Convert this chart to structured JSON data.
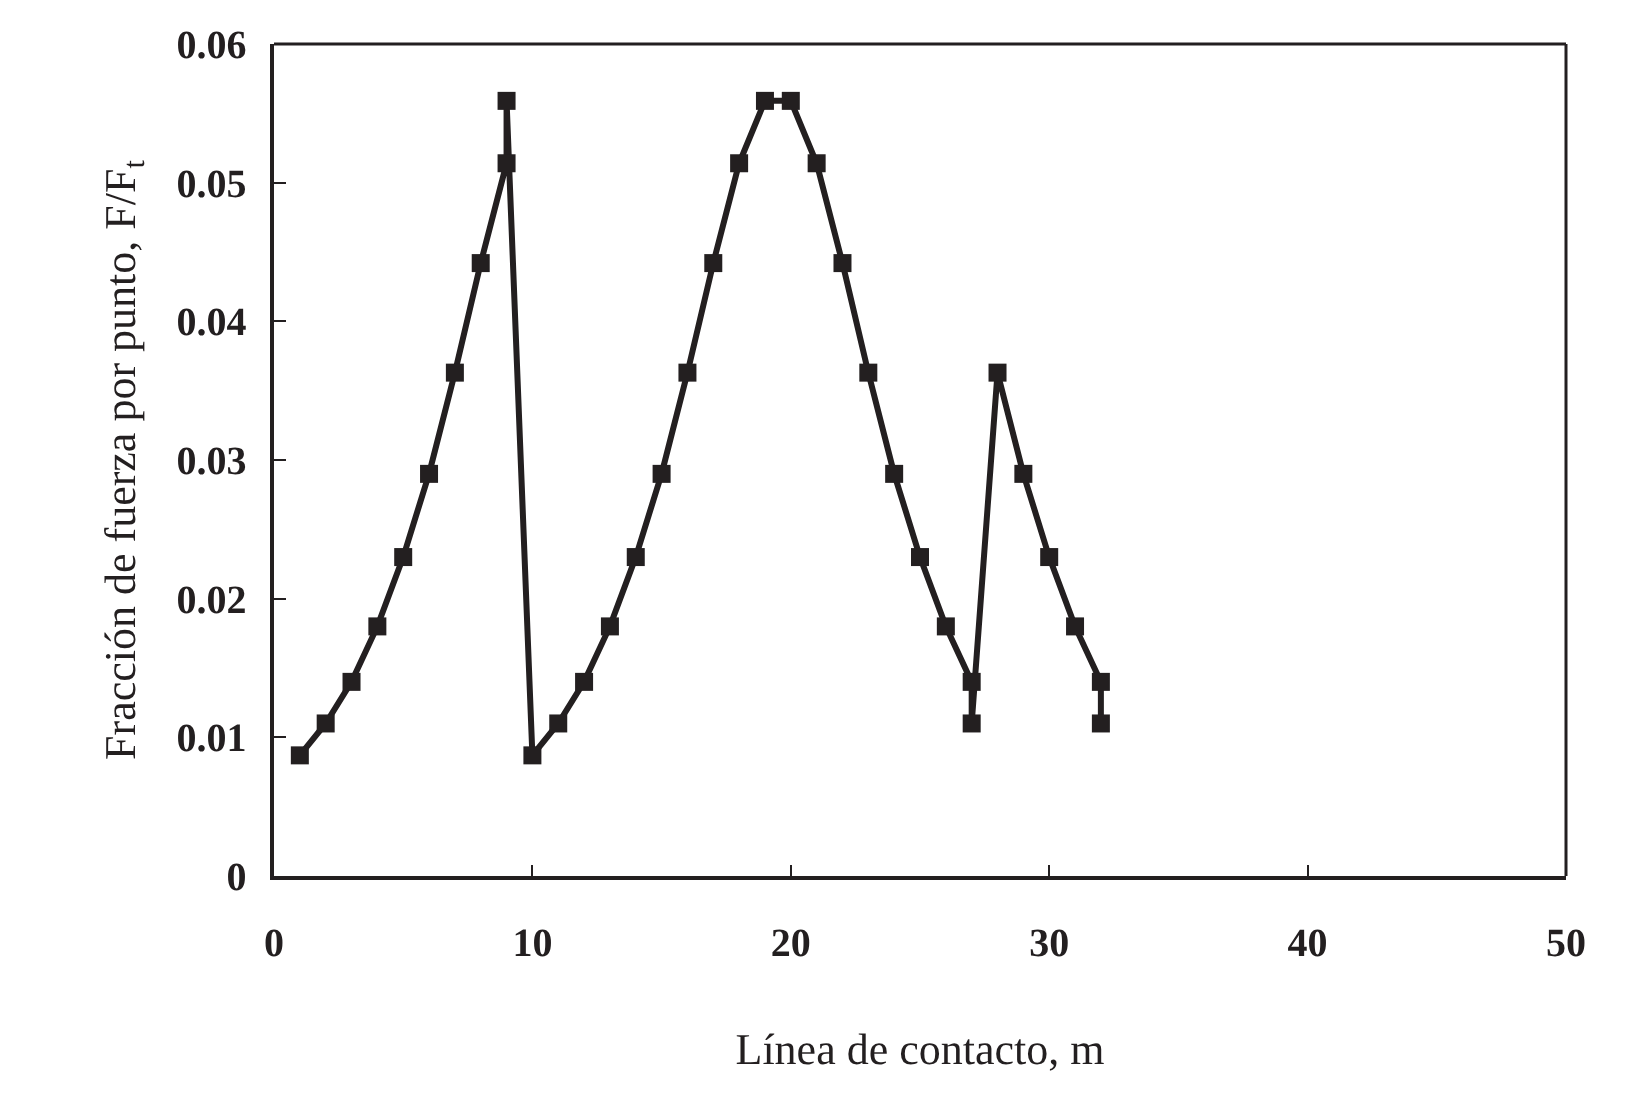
{
  "chart_data": {
    "type": "line",
    "xlabel": "Línea de contacto, m",
    "ylabel": "Fracción de fuerza por punto, F/F$_{t}$",
    "x": [
      1,
      2,
      3,
      4,
      5,
      6,
      7,
      8,
      9,
      9,
      10,
      11,
      12,
      13,
      14,
      15,
      16,
      17,
      18,
      19,
      20,
      21,
      22,
      23,
      24,
      25,
      26,
      27,
      27,
      28,
      29,
      30,
      31,
      32,
      32
    ],
    "series": [
      {
        "color": "#231f20",
        "values": [
          0.0087,
          0.011,
          0.014,
          0.018,
          0.023,
          0.029,
          0.0363,
          0.0442,
          0.0514,
          0.0559,
          0.0087,
          0.011,
          0.014,
          0.018,
          0.023,
          0.029,
          0.0363,
          0.0442,
          0.0514,
          0.0559,
          0.0559,
          0.0514,
          0.0442,
          0.0363,
          0.029,
          0.023,
          0.018,
          0.014,
          0.011,
          0.0363,
          0.029,
          0.023,
          0.018,
          0.014,
          0.011
        ]
      }
    ],
    "xlim": [
      0,
      50
    ],
    "xticks": [
      0,
      10,
      20,
      30,
      40,
      50
    ],
    "ylim": [
      0,
      0.06
    ],
    "yticks": [
      0,
      0.01,
      0.02,
      0.03,
      0.04,
      0.05,
      0.06
    ],
    "marker": "square",
    "line_style": "solid"
  }
}
